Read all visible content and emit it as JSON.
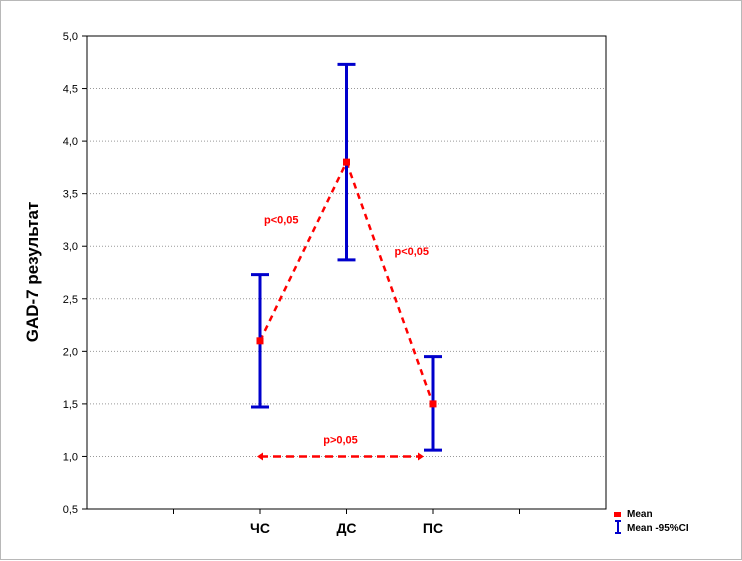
{
  "chart_data": {
    "type": "line",
    "ylabel": "GAD-7 результат",
    "xlabel": "",
    "ylim": [
      0.5,
      5.0
    ],
    "yticks": [
      "0,5",
      "1,0",
      "1,5",
      "2,0",
      "2,5",
      "3,0",
      "3,5",
      "4,0",
      "4,5",
      "5,0"
    ],
    "categories": [
      "ЧС",
      "ДС",
      "ПС"
    ],
    "grid": true,
    "legend_position": "bottom-right",
    "series": [
      {
        "name": "Mean",
        "values": [
          2.1,
          3.8,
          1.5
        ],
        "ci_lower": [
          1.47,
          2.87,
          1.06
        ],
        "ci_upper": [
          2.73,
          4.73,
          1.95
        ],
        "color": "#ff0000"
      }
    ],
    "legend": {
      "mean": "Mean",
      "ci": "Mean -95%CI"
    },
    "ci_color": "#0000cc",
    "annotations": [
      {
        "text": "p<0,05",
        "between": [
          "ЧС",
          "ДС"
        ]
      },
      {
        "text": "p<0,05",
        "between": [
          "ДС",
          "ПС"
        ]
      },
      {
        "text": "p>0,05",
        "between": [
          "ЧС",
          "ПС"
        ],
        "y": 1.0
      }
    ]
  }
}
